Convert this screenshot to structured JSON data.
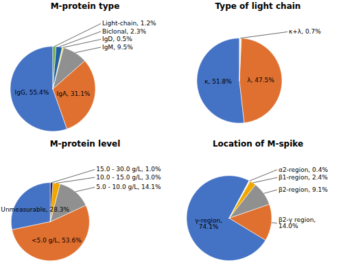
{
  "chart_data": [
    {
      "type": "pie",
      "title": "M-protein type",
      "values": [
        55.4,
        31.1,
        9.5,
        0.5,
        2.3,
        1.2
      ],
      "value_labels": [
        "IgG, 55.4%",
        "IgA, 31.1%",
        "IgM, 9.5%",
        "IgD, 0.5%",
        "Biclonal, 2.3%",
        "Light-chain, 1.2%"
      ],
      "colors": [
        "#4472C4",
        "#E07030",
        "#909090",
        "#F5E030",
        "#1F5FA6",
        "#70AD47"
      ],
      "data_labels": true
    },
    {
      "type": "pie",
      "title": "Type of light chain",
      "values": [
        51.8,
        47.5,
        0.7
      ],
      "value_labels": [
        "κ, 51.8%",
        "λ, 47.5%",
        "κ+λ, 0.7%"
      ],
      "colors": [
        "#4472C4",
        "#E07030",
        "#F5F0DC"
      ],
      "data_labels": true
    },
    {
      "type": "pie",
      "title": "M-protein level",
      "values": [
        28.3,
        53.6,
        14.1,
        3.0,
        1.0
      ],
      "value_labels": [
        "Unmeasurable, 28.3%",
        "<5.0 g/L, 53.6%",
        "5.0 - 10.0 g/L, 14.1%",
        "10.0 - 15.0 g/L, 3.0%",
        "15.0 - 30.0 g/L, 1.0%"
      ],
      "colors": [
        "#4472C4",
        "#E07030",
        "#909090",
        "#F0A800",
        "#1F1F6B"
      ],
      "data_labels": true
    },
    {
      "type": "pie",
      "title": "Location of M-spike",
      "values": [
        74.1,
        14.0,
        9.1,
        2.4,
        0.4
      ],
      "value_labels": [
        "γ-region,\n74.1%",
        "β2-γ region,\n14.0%",
        "β2-region, 9.1%",
        "β1-region, 2.4%",
        "α2-region, 0.4%"
      ],
      "colors": [
        "#4472C4",
        "#E07030",
        "#909090",
        "#F0A800",
        "#F5F0DC"
      ],
      "data_labels": true
    }
  ]
}
